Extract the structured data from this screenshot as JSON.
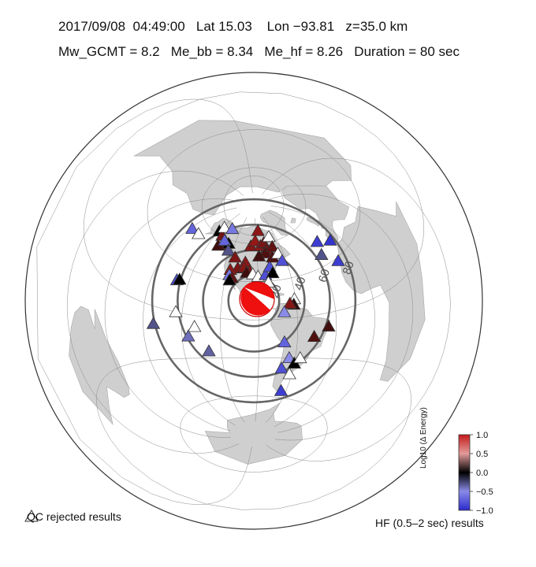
{
  "header": {
    "line1": "2017/09/08  04:49:00   Lat 15.03    Lon −93.81   z=35.0 km",
    "line2": "Mw_GCMT = 8.2   Me_bb = 8.34   Me_hf = 8.26   Duration = 80 sec"
  },
  "rings": [
    {
      "label": "20"
    },
    {
      "label": "40"
    },
    {
      "label": "60"
    },
    {
      "label": "80"
    }
  ],
  "legend": {
    "qc_label": "QC rejected results",
    "hf_label": "HF (0.5–2 sec) results"
  },
  "colorbar": {
    "title": "Log10 (Δ Energy)",
    "ticks": [
      "1.0",
      "0.5",
      "0.0",
      "−0.5",
      "−1.0"
    ],
    "colors": [
      "#c41a1a",
      "#e39a9a",
      "#000000",
      "#8a8ae8",
      "#2a2acc"
    ]
  },
  "map_colors": {
    "ocean": "#ffffff",
    "land": "#cfcfcf",
    "ring": "#666666",
    "beachball_fill": "#ee0f0f"
  },
  "stations": [
    {
      "lat": 62.0,
      "lon": -150.0,
      "v": 0.0
    },
    {
      "lat": 60.5,
      "lon": -142.0,
      "v": 0.5
    },
    {
      "lat": 55.0,
      "lon": -132.0,
      "v": 0.6
    },
    {
      "lat": 57.0,
      "lon": -128.0,
      "v": 0.0
    },
    {
      "lat": 53.0,
      "lon": -139.0,
      "v": 0.2
    },
    {
      "lat": 58.0,
      "lon": -135.0,
      "v": -0.7
    },
    {
      "lat": 52.0,
      "lon": -125.0,
      "v": -0.3
    },
    {
      "lat": 66.0,
      "lon": -148.0,
      "v": null
    },
    {
      "lat": 68.0,
      "lon": -135.0,
      "v": -0.6
    },
    {
      "lat": 48.0,
      "lon": -115.0,
      "v": 0.55
    },
    {
      "lat": 45.0,
      "lon": -103.0,
      "v": 0.65
    },
    {
      "lat": 40.0,
      "lon": -110.0,
      "v": 0.55
    },
    {
      "lat": 41.0,
      "lon": -104.0,
      "v": 0.6
    },
    {
      "lat": 38.0,
      "lon": -98.0,
      "v": 0.6
    },
    {
      "lat": 38.0,
      "lon": -117.0,
      "v": 0.65
    },
    {
      "lat": 37.0,
      "lon": -101.0,
      "v": 0.2
    },
    {
      "lat": 34.0,
      "lon": -117.0,
      "v": -0.6
    },
    {
      "lat": 32.0,
      "lon": -114.0,
      "v": 0.4
    },
    {
      "lat": 30.0,
      "lon": -116.0,
      "v": 0.0
    },
    {
      "lat": 36.0,
      "lon": -95.0,
      "v": null
    },
    {
      "lat": 34.0,
      "lon": -90.0,
      "v": null
    },
    {
      "lat": 35.0,
      "lon": -83.0,
      "v": -0.8
    },
    {
      "lat": 41.0,
      "lon": -78.0,
      "v": -0.8
    },
    {
      "lat": 36.0,
      "lon": -76.0,
      "v": 0.0
    },
    {
      "lat": 29.0,
      "lon": -81.0,
      "v": null
    },
    {
      "lat": 58.0,
      "lon": -98.0,
      "v": 0.6
    },
    {
      "lat": 62.0,
      "lon": -92.0,
      "v": 0.7
    },
    {
      "lat": 58.0,
      "lon": -85.0,
      "v": 0.65
    },
    {
      "lat": 60.0,
      "lon": -80.0,
      "v": 0.55
    },
    {
      "lat": 55.0,
      "lon": -78.0,
      "v": 0.5
    },
    {
      "lat": 52.0,
      "lon": -80.0,
      "v": 0.3
    },
    {
      "lat": 50.0,
      "lon": -88.0,
      "v": 0.2
    },
    {
      "lat": 64.0,
      "lon": -70.0,
      "v": null
    },
    {
      "lat": 56.0,
      "lon": -70.0,
      "v": 0.4
    },
    {
      "lat": 48.0,
      "lon": -73.0,
      "v": 0.3
    },
    {
      "lat": 50.0,
      "lon": -66.0,
      "v": null
    },
    {
      "lat": 70.0,
      "lon": -86.0,
      "v": 0.65
    },
    {
      "lat": 44.0,
      "lon": -64.0,
      "v": -0.8
    },
    {
      "lat": 14.0,
      "lon": -61.0,
      "v": null
    },
    {
      "lat": 10.0,
      "lon": -62.0,
      "v": 0.1
    },
    {
      "lat": 11.0,
      "lon": -65.0,
      "v": 0.6
    },
    {
      "lat": 5.0,
      "lon": -70.0,
      "v": -0.5
    },
    {
      "lat": -15.0,
      "lon": -47.0,
      "v": 0.3
    },
    {
      "lat": -9.0,
      "lon": -36.0,
      "v": 0.2
    },
    {
      "lat": -18.0,
      "lon": -70.0,
      "v": -0.7
    },
    {
      "lat": -30.0,
      "lon": -65.0,
      "v": -0.5
    },
    {
      "lat": -34.0,
      "lon": -60.0,
      "v": 0.0
    },
    {
      "lat": -38.0,
      "lon": -70.0,
      "v": -0.8
    },
    {
      "lat": -42.0,
      "lon": -62.0,
      "v": null
    },
    {
      "lat": -55.0,
      "lon": -65.0,
      "v": -0.9
    },
    {
      "lat": -30.0,
      "lon": -56.0,
      "v": null
    },
    {
      "lat": 28.0,
      "lon": -15.0,
      "v": -0.9
    },
    {
      "lat": 40.0,
      "lon": -9.0,
      "v": -0.95
    },
    {
      "lat": 45.0,
      "lon": -20.0,
      "v": -0.9
    },
    {
      "lat": 37.0,
      "lon": -25.0,
      "v": -0.3
    },
    {
      "lat": 20.0,
      "lon": -160.0,
      "v": -0.8
    },
    {
      "lat": 51.0,
      "lon": -178.0,
      "v": -0.7
    },
    {
      "lat": 52.0,
      "lon": -168.0,
      "v": null
    },
    {
      "lat": 0.0,
      "lon": -155.0,
      "v": null
    },
    {
      "lat": -15.0,
      "lon": -145.0,
      "v": -0.4
    },
    {
      "lat": -10.0,
      "lon": -172.0,
      "v": -0.3
    },
    {
      "lat": -8.0,
      "lon": -140.0,
      "v": null
    },
    {
      "lat": -25.0,
      "lon": -130.0,
      "v": -0.35
    },
    {
      "lat": 21.0,
      "lon": -158.0,
      "v": 0.0
    }
  ],
  "beachball": {
    "lat": 15.03,
    "lon": -93.81
  }
}
